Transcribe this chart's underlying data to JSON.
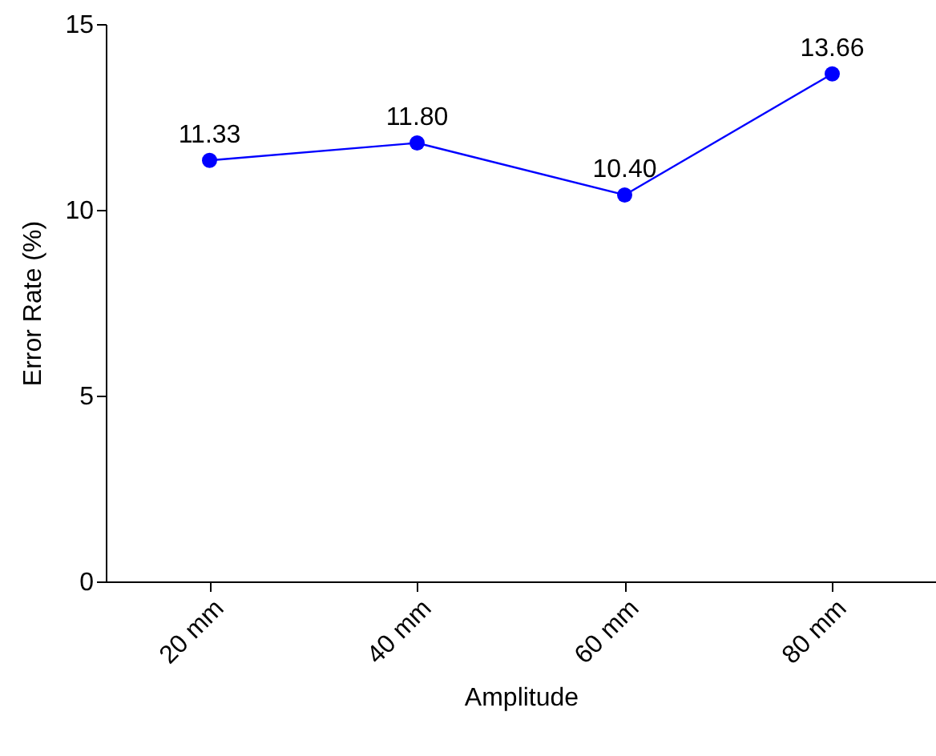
{
  "chart_data": {
    "type": "line",
    "xlabel": "Amplitude",
    "ylabel": "Error Rate (%)",
    "categories": [
      "20 mm",
      "40 mm",
      "60 mm",
      "80 mm"
    ],
    "values": [
      11.33,
      11.8,
      10.4,
      13.66
    ],
    "value_labels": [
      "11.33",
      "11.80",
      "10.40",
      "13.66"
    ],
    "color": "#0000ff",
    "marker": "circle",
    "line_style": "solid",
    "ylim": [
      0,
      15
    ],
    "yticks": [
      0,
      5,
      10,
      15
    ]
  }
}
